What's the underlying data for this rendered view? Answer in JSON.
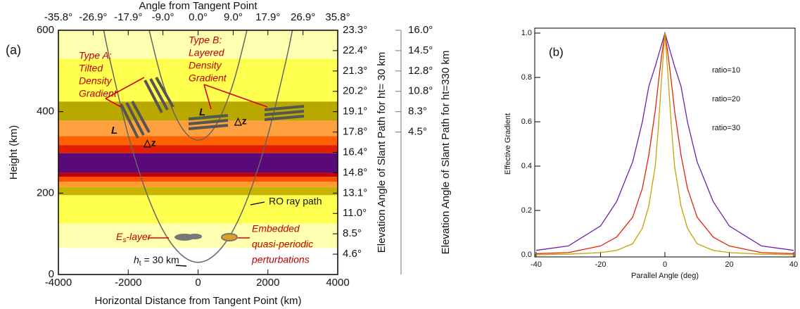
{
  "chart_data": [
    {
      "type": "layer-diagram",
      "panel_label": "(a)",
      "xlabel": "Horizontal Distance from Tangent Point (km)",
      "ylabel": "Height (km)",
      "x2label": "Angle from Tangent Point",
      "y2label": "Elevation Angle of Slant Path for ht= 30 km",
      "y3label": "Elevation Angle of Slant Path for ht=330 km",
      "xlim": [
        -4000,
        4000
      ],
      "ylim": [
        0,
        600
      ],
      "xticks": [
        -4000,
        -2000,
        0,
        2000,
        4000
      ],
      "yticks": [
        0,
        200,
        400,
        600
      ],
      "x2lim": [
        -35.8,
        35.8
      ],
      "x2ticks": [
        {
          "value": -35.8,
          "label": "-35.8°"
        },
        {
          "value": -26.9,
          "label": "-26.9°"
        },
        {
          "value": -17.9,
          "label": "-17.9°"
        },
        {
          "value": -9.0,
          "label": "-9.0°"
        },
        {
          "value": 0.0,
          "label": "0.0°"
        },
        {
          "value": 9.0,
          "label": "9.0°"
        },
        {
          "value": 17.9,
          "label": "17.9°"
        },
        {
          "value": 26.9,
          "label": "26.9°"
        },
        {
          "value": 35.8,
          "label": "35.8°"
        }
      ],
      "y2ticks": [
        {
          "value": 23.3,
          "label": "23.3°",
          "height": 600
        },
        {
          "value": 22.4,
          "label": "22.4°",
          "height": 550
        },
        {
          "value": 21.3,
          "label": "21.3°",
          "height": 500
        },
        {
          "value": 20.2,
          "label": "20.2°",
          "height": 450
        },
        {
          "value": 19.1,
          "label": "19.1°",
          "height": 400
        },
        {
          "value": 17.8,
          "label": "17.8°",
          "height": 350
        },
        {
          "value": 16.4,
          "label": "16.4°",
          "height": 300
        },
        {
          "value": 14.8,
          "label": "14.8°",
          "height": 250
        },
        {
          "value": 13.1,
          "label": "13.1°",
          "height": 200
        },
        {
          "value": 11.0,
          "label": "11.0°",
          "height": 150
        },
        {
          "value": 8.5,
          "label": "8.5°",
          "height": 100
        },
        {
          "value": 4.6,
          "label": "4.6°",
          "height": 50
        }
      ],
      "y3ticks": [
        {
          "value": 16.0,
          "label": "16.0°",
          "height": 600
        },
        {
          "value": 14.5,
          "label": "14.5°",
          "height": 550
        },
        {
          "value": 12.8,
          "label": "12.8°",
          "height": 500
        },
        {
          "value": 10.8,
          "label": "10.8°",
          "height": 450
        },
        {
          "value": 8.3,
          "label": "8.3°",
          "height": 400
        },
        {
          "value": 4.5,
          "label": "4.5°",
          "height": 350
        }
      ],
      "bands": [
        {
          "from": 65,
          "to": 125,
          "color": "#ffffb0"
        },
        {
          "from": 125,
          "to": 195,
          "color": "#ffff50"
        },
        {
          "from": 195,
          "to": 215,
          "color": "#c8b400"
        },
        {
          "from": 215,
          "to": 228,
          "color": "#ff9c30"
        },
        {
          "from": 228,
          "to": 240,
          "color": "#ff5000"
        },
        {
          "from": 240,
          "to": 250,
          "color": "#c00000"
        },
        {
          "from": 250,
          "to": 298,
          "color": "#5a0a78"
        },
        {
          "from": 298,
          "to": 318,
          "color": "#e02000"
        },
        {
          "from": 318,
          "to": 340,
          "color": "#ff6000"
        },
        {
          "from": 340,
          "to": 378,
          "color": "#ffa040"
        },
        {
          "from": 378,
          "to": 425,
          "color": "#b8a800"
        },
        {
          "from": 425,
          "to": 530,
          "color": "#ffff50"
        },
        {
          "from": 530,
          "to": 600,
          "color": "#ffffb0"
        }
      ],
      "series": [
        {
          "name": "RO ray path",
          "color": "#666666",
          "x": [
            -2700,
            -2500,
            -2000,
            -1500,
            -1000,
            -500,
            0,
            500,
            1000,
            1500,
            2000,
            2500,
            2700
          ],
          "values": [
            599,
            518,
            342,
            206,
            108,
            50,
            30,
            50,
            108,
            206,
            342,
            518,
            599
          ]
        },
        {
          "color": "#666666",
          "x": [
            -1400,
            -1000,
            -500,
            0,
            500,
            1000,
            1400
          ],
          "values": [
            600,
            468,
            365,
            330,
            365,
            468,
            600
          ]
        }
      ],
      "annotations": {
        "type_a": [
          "Type A:",
          "Tilted",
          "Density",
          "Gradient"
        ],
        "type_b": [
          "Type B:",
          "Layered",
          "Density",
          "Gradient"
        ],
        "length": "L",
        "dz": "△z",
        "embedded": [
          "Embedded",
          "quasi-periodic",
          "perturbations"
        ],
        "es_layer": {
          "main": "E",
          "sub": "s",
          "rest": "-layer"
        },
        "tangent": {
          "main": "h",
          "sub": "t",
          "rest": " = 30 km"
        }
      }
    },
    {
      "type": "line",
      "panel_label": "(b)",
      "xlabel": "Parallel Angle (deg)",
      "ylabel": "Effective Gradient",
      "xlim": [
        -40,
        40
      ],
      "ylim": [
        0,
        1
      ],
      "xticks": [
        -40,
        -20,
        0,
        20,
        40
      ],
      "yticks": [
        {
          "value": 0,
          "label": "0.0"
        },
        {
          "value": 0.2,
          "label": "0.2"
        },
        {
          "value": 0.4,
          "label": "0.4"
        },
        {
          "value": 0.6,
          "label": "0.6"
        },
        {
          "value": 0.8,
          "label": "0.8"
        },
        {
          "value": 1,
          "label": "1.0"
        }
      ],
      "legend": "upper right",
      "x": [
        -40,
        -30,
        -20,
        -15,
        -10,
        -7,
        -5,
        -3,
        -2,
        -1,
        0,
        1,
        2,
        3,
        5,
        7,
        10,
        15,
        20,
        30,
        40
      ],
      "series": [
        {
          "name": "ratio=10",
          "color": "#6a1fb0",
          "values": [
            0.02,
            0.04,
            0.13,
            0.24,
            0.42,
            0.6,
            0.76,
            0.85,
            0.9,
            0.95,
            1.0,
            0.95,
            0.9,
            0.85,
            0.76,
            0.6,
            0.42,
            0.24,
            0.13,
            0.04,
            0.02
          ]
        },
        {
          "name": "ratio=20",
          "color": "#e8200a",
          "values": [
            0.005,
            0.01,
            0.04,
            0.08,
            0.17,
            0.3,
            0.45,
            0.65,
            0.78,
            0.9,
            1.0,
            0.9,
            0.78,
            0.65,
            0.45,
            0.3,
            0.17,
            0.08,
            0.04,
            0.01,
            0.005
          ]
        },
        {
          "name": "ratio=30",
          "color": "#c8a000",
          "values": [
            0.0,
            0.003,
            0.01,
            0.02,
            0.05,
            0.12,
            0.22,
            0.4,
            0.58,
            0.8,
            1.0,
            0.8,
            0.58,
            0.4,
            0.22,
            0.12,
            0.05,
            0.02,
            0.01,
            0.003,
            0.0
          ]
        }
      ]
    }
  ]
}
